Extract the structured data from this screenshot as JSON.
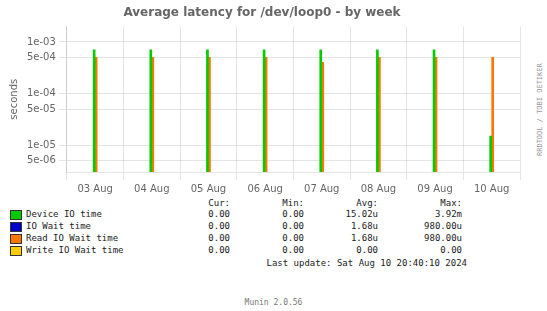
{
  "chart_data": {
    "type": "bar",
    "title": "Average latency for /dev/loop0 - by week",
    "ylabel": "seconds",
    "categories": [
      "03 Aug",
      "04 Aug",
      "05 Aug",
      "06 Aug",
      "07 Aug",
      "08 Aug",
      "09 Aug",
      "10 Aug"
    ],
    "series": [
      {
        "name": "Device IO time",
        "color": "#00cc00",
        "values": [
          0.0007,
          0.0007,
          0.0007,
          0.0007,
          0.0007,
          0.0007,
          0.0007,
          1.5e-05
        ]
      },
      {
        "name": "Read IO Wait time",
        "color": "#ff7700",
        "values": [
          0.0005,
          0.0005,
          0.0005,
          0.0005,
          0.0004,
          0.0005,
          0.0005,
          0.0005
        ]
      }
    ],
    "log": "y",
    "ylim": [
      3e-06,
      0.002
    ],
    "yticks": [
      {
        "value": 5e-06,
        "label": "5e-06"
      },
      {
        "value": 1e-05,
        "label": "1e-05"
      },
      {
        "value": 5e-05,
        "label": "5e-05"
      },
      {
        "value": 0.0001,
        "label": "1e-04"
      },
      {
        "value": 0.0005,
        "label": "5e-04"
      },
      {
        "value": 0.001,
        "label": "1e-03"
      }
    ],
    "grid": true,
    "table": {
      "headers": [
        "Cur:",
        "Min:",
        "Avg:",
        "Max:"
      ],
      "rows": [
        {
          "name": "Device IO time",
          "color": "#00cc00",
          "values": [
            "0.00",
            "0.00",
            "15.02u",
            "3.92m"
          ]
        },
        {
          "name": "IO Wait time",
          "color": "#0000cc",
          "values": [
            "0.00",
            "0.00",
            "1.68u",
            "980.00u"
          ]
        },
        {
          "name": "Read IO Wait time",
          "color": "#ff7700",
          "values": [
            "0.00",
            "0.00",
            "1.68u",
            "980.00u"
          ]
        },
        {
          "name": "Write IO Wait time",
          "color": "#ffcc00",
          "values": [
            "0.00",
            "0.00",
            "0.00",
            "0.00"
          ]
        }
      ]
    },
    "annotations": [
      "Last update: Sat Aug 10 20:40:10 2024",
      "Munin 2.0.56",
      "RRDTOOL / TOBI OETIKER"
    ]
  }
}
